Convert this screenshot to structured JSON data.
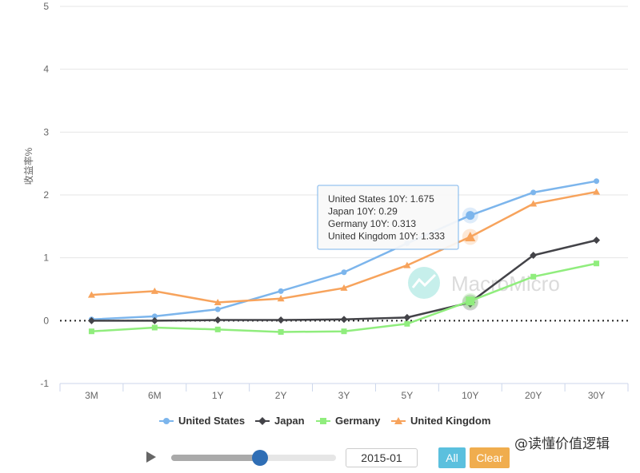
{
  "chart_data": {
    "type": "line",
    "ylabel": "收益率%",
    "categories": [
      "3M",
      "6M",
      "1Y",
      "2Y",
      "3Y",
      "5Y",
      "10Y",
      "20Y",
      "30Y"
    ],
    "ylim": [
      -1,
      5
    ],
    "yticks": [
      -1,
      0,
      1,
      2,
      3,
      4,
      5
    ],
    "series": [
      {
        "name": "United States",
        "color": "#7cb5ec",
        "marker": "circle",
        "values": [
          0.02,
          0.07,
          0.18,
          0.47,
          0.77,
          1.23,
          1.675,
          2.04,
          2.22
        ]
      },
      {
        "name": "Japan",
        "color": "#434348",
        "marker": "diamond",
        "values": [
          0.0,
          0.0,
          0.01,
          0.01,
          0.02,
          0.05,
          0.29,
          1.04,
          1.28
        ]
      },
      {
        "name": "Germany",
        "color": "#90ed7d",
        "marker": "square",
        "values": [
          -0.17,
          -0.11,
          -0.14,
          -0.18,
          -0.17,
          -0.05,
          0.313,
          0.7,
          0.91
        ]
      },
      {
        "name": "United Kingdom",
        "color": "#f7a35c",
        "marker": "triangle",
        "values": [
          0.41,
          0.47,
          0.29,
          0.35,
          0.52,
          0.88,
          1.333,
          1.86,
          2.05
        ]
      }
    ],
    "tooltip": {
      "category": "10Y",
      "lines": [
        "United States 10Y: 1.675",
        "Japan 10Y: 0.29",
        "Germany 10Y: 0.313",
        "United Kingdom 10Y: 1.333"
      ]
    },
    "watermark_logo": "MacroMicro",
    "grid": true,
    "legend_position": "bottom-center",
    "zero_line": "dotted"
  },
  "controls": {
    "date": "2015-01",
    "all_label": "All",
    "clear_label": "Clear",
    "progress": 0.54
  },
  "credit": "@读懂价值逻辑"
}
